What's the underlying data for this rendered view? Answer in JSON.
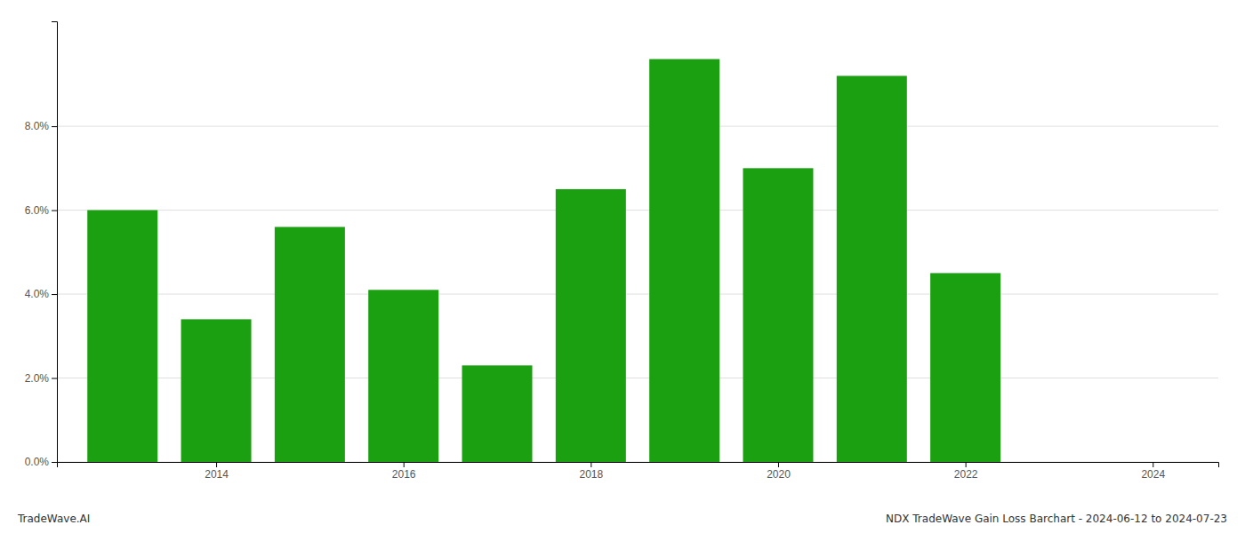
{
  "chart_data": {
    "type": "bar",
    "x": [
      2013,
      2014,
      2015,
      2016,
      2017,
      2018,
      2019,
      2020,
      2021,
      2022,
      2023
    ],
    "values": [
      0.06,
      0.034,
      0.056,
      0.041,
      0.023,
      0.065,
      0.096,
      0.07,
      0.092,
      0.045,
      0.0
    ],
    "color": "#1aa010",
    "xlim": [
      2012.3,
      2024.7
    ],
    "xticks": [
      2014,
      2016,
      2018,
      2020,
      2022,
      2024
    ],
    "ylim": [
      0,
      0.105
    ],
    "yticks": [
      {
        "value": 0.0,
        "label": "0.0%"
      },
      {
        "value": 0.02,
        "label": "2.0%"
      },
      {
        "value": 0.04,
        "label": "4.0%"
      },
      {
        "value": 0.06,
        "label": "6.0%"
      },
      {
        "value": 0.08,
        "label": "8.0%"
      }
    ],
    "grid": true,
    "annotations": [
      "TradeWave.AI",
      "NDX TradeWave Gain Loss Barchart - 2024-06-12 to 2024-07-23"
    ]
  }
}
